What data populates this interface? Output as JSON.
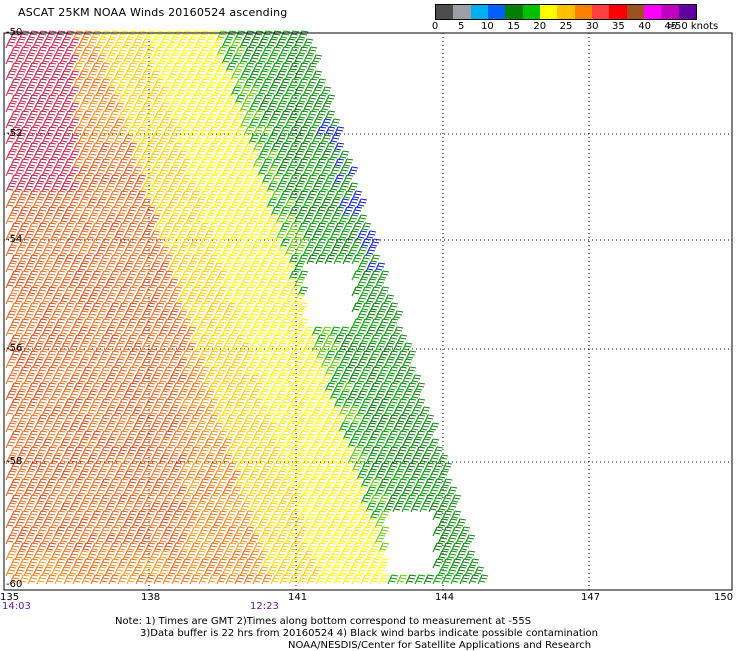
{
  "title": "ASCAT 25KM NOAA Winds 20160524 ascending",
  "legend": {
    "ticks": [
      "0",
      "5",
      "10",
      "15",
      "20",
      "25",
      "30",
      "35",
      "40",
      "45",
      ">50 knots"
    ],
    "colors": [
      "#4d4d4d",
      "#9aa0a6",
      "#00b0f0",
      "#0060ff",
      "#008000",
      "#00c000",
      "#ffff00",
      "#ffc000",
      "#ff8000",
      "#ff4040",
      "#ff0000",
      "#a05020",
      "#ff00ff",
      "#c000c0",
      "#6000a0"
    ]
  },
  "axes": {
    "x_ticks": [
      "135",
      "138",
      "141",
      "144",
      "147",
      "150"
    ],
    "y_ticks": [
      "-50",
      "-52",
      "-54",
      "-56",
      "-58",
      "-60"
    ]
  },
  "times": {
    "left": "14:03",
    "mid": "12:23"
  },
  "notes": {
    "line1": "Note: 1) Times are GMT 2)Times along bottom correspond to measurement at -55S",
    "line2": "3)Data buffer is 22 hrs from 20160524 4) Black wind barbs indicate possible contamination",
    "line3": "NOAA/NESDIS/Center for Satellite Applications and Research"
  }
}
